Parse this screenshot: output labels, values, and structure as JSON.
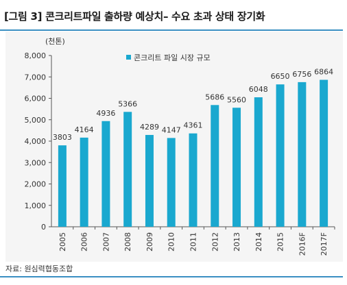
{
  "title": "[그림 3] 콘크리트파일 출하량 예상치– 수요 초과 상태 장기화",
  "source": "자료: 원심력협동조합",
  "colors": {
    "bar": "#1aa8cf",
    "rule": "#3a8fc2",
    "plot_bg": "#f5f5f5"
  },
  "chart_data": {
    "type": "bar",
    "unit_label": "(천톤)",
    "categories": [
      "2005",
      "2006",
      "2007",
      "2008",
      "2009",
      "2010",
      "2011",
      "2012",
      "2013",
      "2014",
      "2015",
      "2016F",
      "2017F"
    ],
    "series": [
      {
        "name": "콘크리트 파일 시장 규모",
        "values": [
          3803,
          4164,
          4936,
          5366,
          4289,
          4147,
          4361,
          5686,
          5560,
          6048,
          6650,
          6756,
          6864
        ]
      }
    ],
    "data_labels": [
      "3803",
      "4164",
      "4936",
      "5366",
      "4289",
      "4147",
      "4361",
      "5686",
      "5560",
      "6048",
      "6650",
      "6756",
      "6864"
    ],
    "ylim": [
      0,
      8000
    ],
    "yticks": [
      0,
      1000,
      2000,
      3000,
      4000,
      5000,
      6000,
      7000,
      8000
    ],
    "ytick_labels": [
      "0",
      "1,000",
      "2,000",
      "3,000",
      "4,000",
      "5,000",
      "6,000",
      "7,000",
      "8,000"
    ],
    "legend_position": "top-center",
    "grid": false
  }
}
